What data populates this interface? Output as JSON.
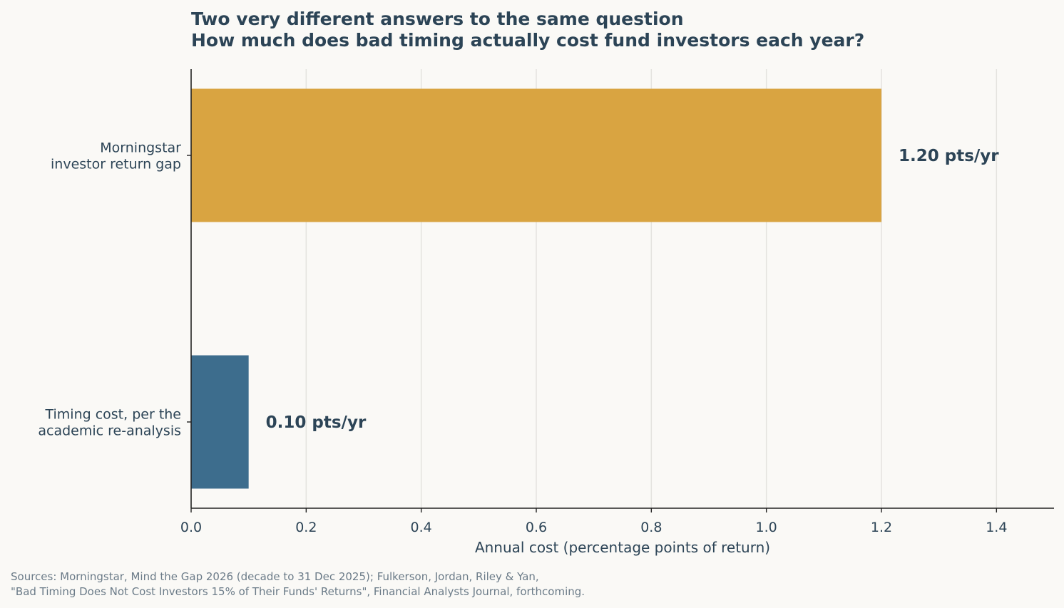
{
  "chart_data": {
    "type": "bar",
    "orientation": "horizontal",
    "title_lines": [
      "Two very different answers to the same question",
      "How much does bad timing actually cost fund investors each year?"
    ],
    "categories": [
      [
        "Morningstar",
        "investor return gap"
      ],
      [
        "Timing cost, per the",
        "academic re-analysis"
      ]
    ],
    "values": [
      1.2,
      0.1
    ],
    "value_labels": [
      "1.20 pts/yr",
      "0.10 pts/yr"
    ],
    "colors": [
      "#d9a441",
      "#3d6d8d"
    ],
    "xlabel": "Annual cost (percentage points of return)",
    "ylabel": "",
    "xlim": [
      0,
      1.5
    ],
    "xticks": [
      0.0,
      0.2,
      0.4,
      0.6,
      0.8,
      1.0,
      1.2,
      1.4
    ],
    "xtick_labels": [
      "0.0",
      "0.2",
      "0.4",
      "0.6",
      "0.8",
      "1.0",
      "1.2",
      "1.4"
    ],
    "grid": "vertical"
  },
  "sources": [
    "Sources: Morningstar, Mind the Gap 2026 (decade to 31 Dec 2025); Fulkerson, Jordan, Riley & Yan,",
    "\"Bad Timing Does Not Cost Investors 15% of Their Funds' Returns\", Financial Analysts Journal, forthcoming."
  ]
}
